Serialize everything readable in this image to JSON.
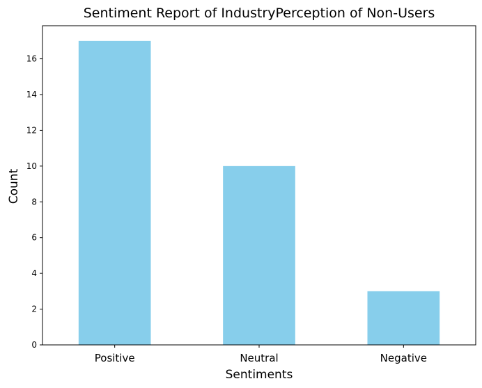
{
  "chart_data": {
    "type": "bar",
    "title": "Sentiment Report of IndustryPerception of Non-Users",
    "xlabel": "Sentiments",
    "ylabel": "Count",
    "categories": [
      "Positive",
      "Neutral",
      "Negative"
    ],
    "values": [
      17,
      10,
      3
    ],
    "ylim": [
      0,
      17.85
    ],
    "yticks": [
      0,
      2,
      4,
      6,
      8,
      10,
      12,
      14,
      16
    ],
    "bar_color": "#87ceeb",
    "grid": false,
    "legend": "none"
  }
}
